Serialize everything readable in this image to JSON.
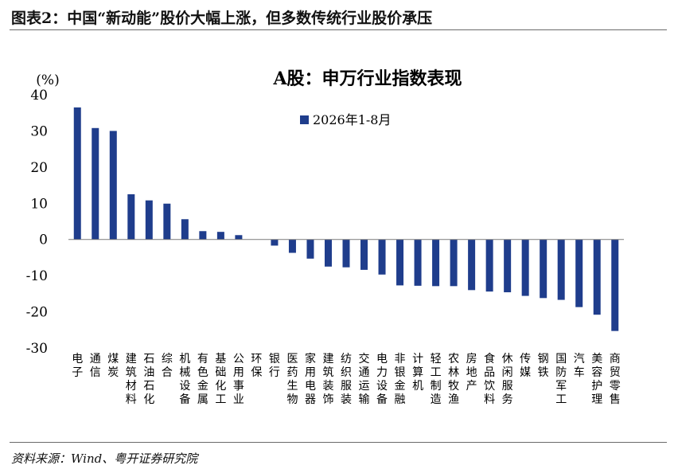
{
  "figure": {
    "title": "图表2：中国“新动能”股价大幅上涨，但多数传统行业股价承压",
    "source": "资料来源：Wind、粤开证券研究院"
  },
  "chart_data": {
    "type": "bar",
    "title": "A股：申万行业指数表现",
    "ylabel": "(%)",
    "xlabel": "",
    "ylim": [
      -30,
      40
    ],
    "yticks": [
      40,
      30,
      20,
      10,
      0,
      -10,
      -20,
      -30
    ],
    "legend": "top-center",
    "categories": [
      "电子",
      "通信",
      "煤炭",
      "建筑材料",
      "石油石化",
      "综合",
      "机械设备",
      "有色金属",
      "基础化工",
      "公用事业",
      "环保",
      "银行",
      "医药生物",
      "家用电器",
      "建筑装饰",
      "纺织服装",
      "交通运输",
      "电力设备",
      "非银金融",
      "计算机",
      "轻工制造",
      "农林牧渔",
      "房地产",
      "食品饮料",
      "休闲服务",
      "传媒",
      "钢铁",
      "国防军工",
      "汽车",
      "美容护理",
      "商贸零售"
    ],
    "series": [
      {
        "name": "2026年1-8月",
        "color": "#1f3d8c",
        "values": [
          36.5,
          30.8,
          30.0,
          12.5,
          10.8,
          9.9,
          5.6,
          2.3,
          2.1,
          1.2,
          0.0,
          -1.7,
          -3.7,
          -5.3,
          -7.5,
          -7.7,
          -8.4,
          -9.7,
          -12.7,
          -12.8,
          -12.9,
          -12.9,
          -14.0,
          -14.4,
          -14.6,
          -15.6,
          -16.2,
          -16.7,
          -18.7,
          -20.8,
          -25.3
        ]
      }
    ]
  }
}
